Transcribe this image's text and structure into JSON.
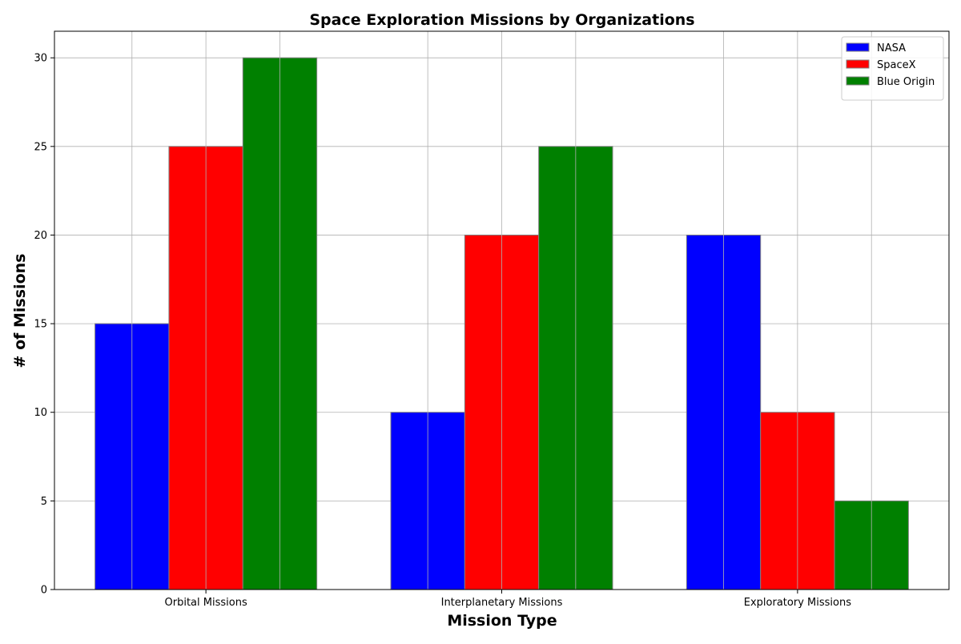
{
  "chart_data": {
    "type": "bar",
    "title": "Space Exploration Missions by Organizations",
    "xlabel": "Mission Type",
    "ylabel": "# of Missions",
    "categories": [
      "Orbital Missions",
      "Interplanetary Missions",
      "Exploratory Missions"
    ],
    "series": [
      {
        "name": "NASA",
        "color": "#0000ff",
        "values": [
          15,
          10,
          20
        ]
      },
      {
        "name": "SpaceX",
        "color": "#ff0000",
        "values": [
          25,
          20,
          10
        ]
      },
      {
        "name": "Blue Origin",
        "color": "#008000",
        "values": [
          30,
          25,
          5
        ]
      }
    ],
    "ylim": [
      0,
      31.5
    ],
    "yticks": [
      0,
      5,
      10,
      15,
      20,
      25,
      30
    ],
    "grid": true,
    "legend_position": "top-right"
  }
}
